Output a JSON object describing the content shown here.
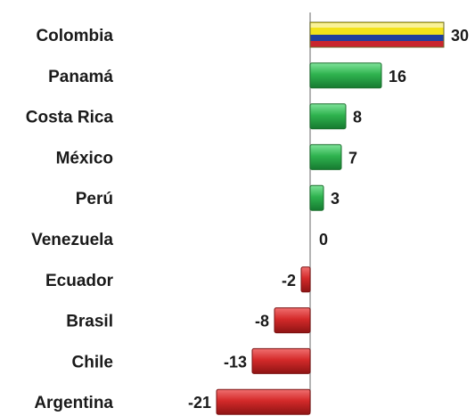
{
  "chart_data": {
    "type": "bar",
    "orientation": "horizontal",
    "categories": [
      "Colombia",
      "Panamá",
      "Costa Rica",
      "México",
      "Perú",
      "Venezuela",
      "Ecuador",
      "Brasil",
      "Chile",
      "Argentina"
    ],
    "values": [
      30,
      16,
      8,
      7,
      3,
      0,
      -2,
      -8,
      -13,
      -21
    ],
    "value_labels": [
      "30",
      "16",
      "8",
      "7",
      "3",
      "0",
      "-2",
      "-8",
      "-13",
      "-21"
    ],
    "title": "",
    "xlabel": "",
    "ylabel": "",
    "xlim": [
      -21,
      30
    ],
    "grid": false,
    "legend": "none",
    "colors": {
      "positive": "#2fb34f",
      "negative": "#d42a2a",
      "colombia_flag": [
        "#f2e21a",
        "#1f3f9e",
        "#c9262e"
      ],
      "axis": "#9a9a9a"
    }
  }
}
